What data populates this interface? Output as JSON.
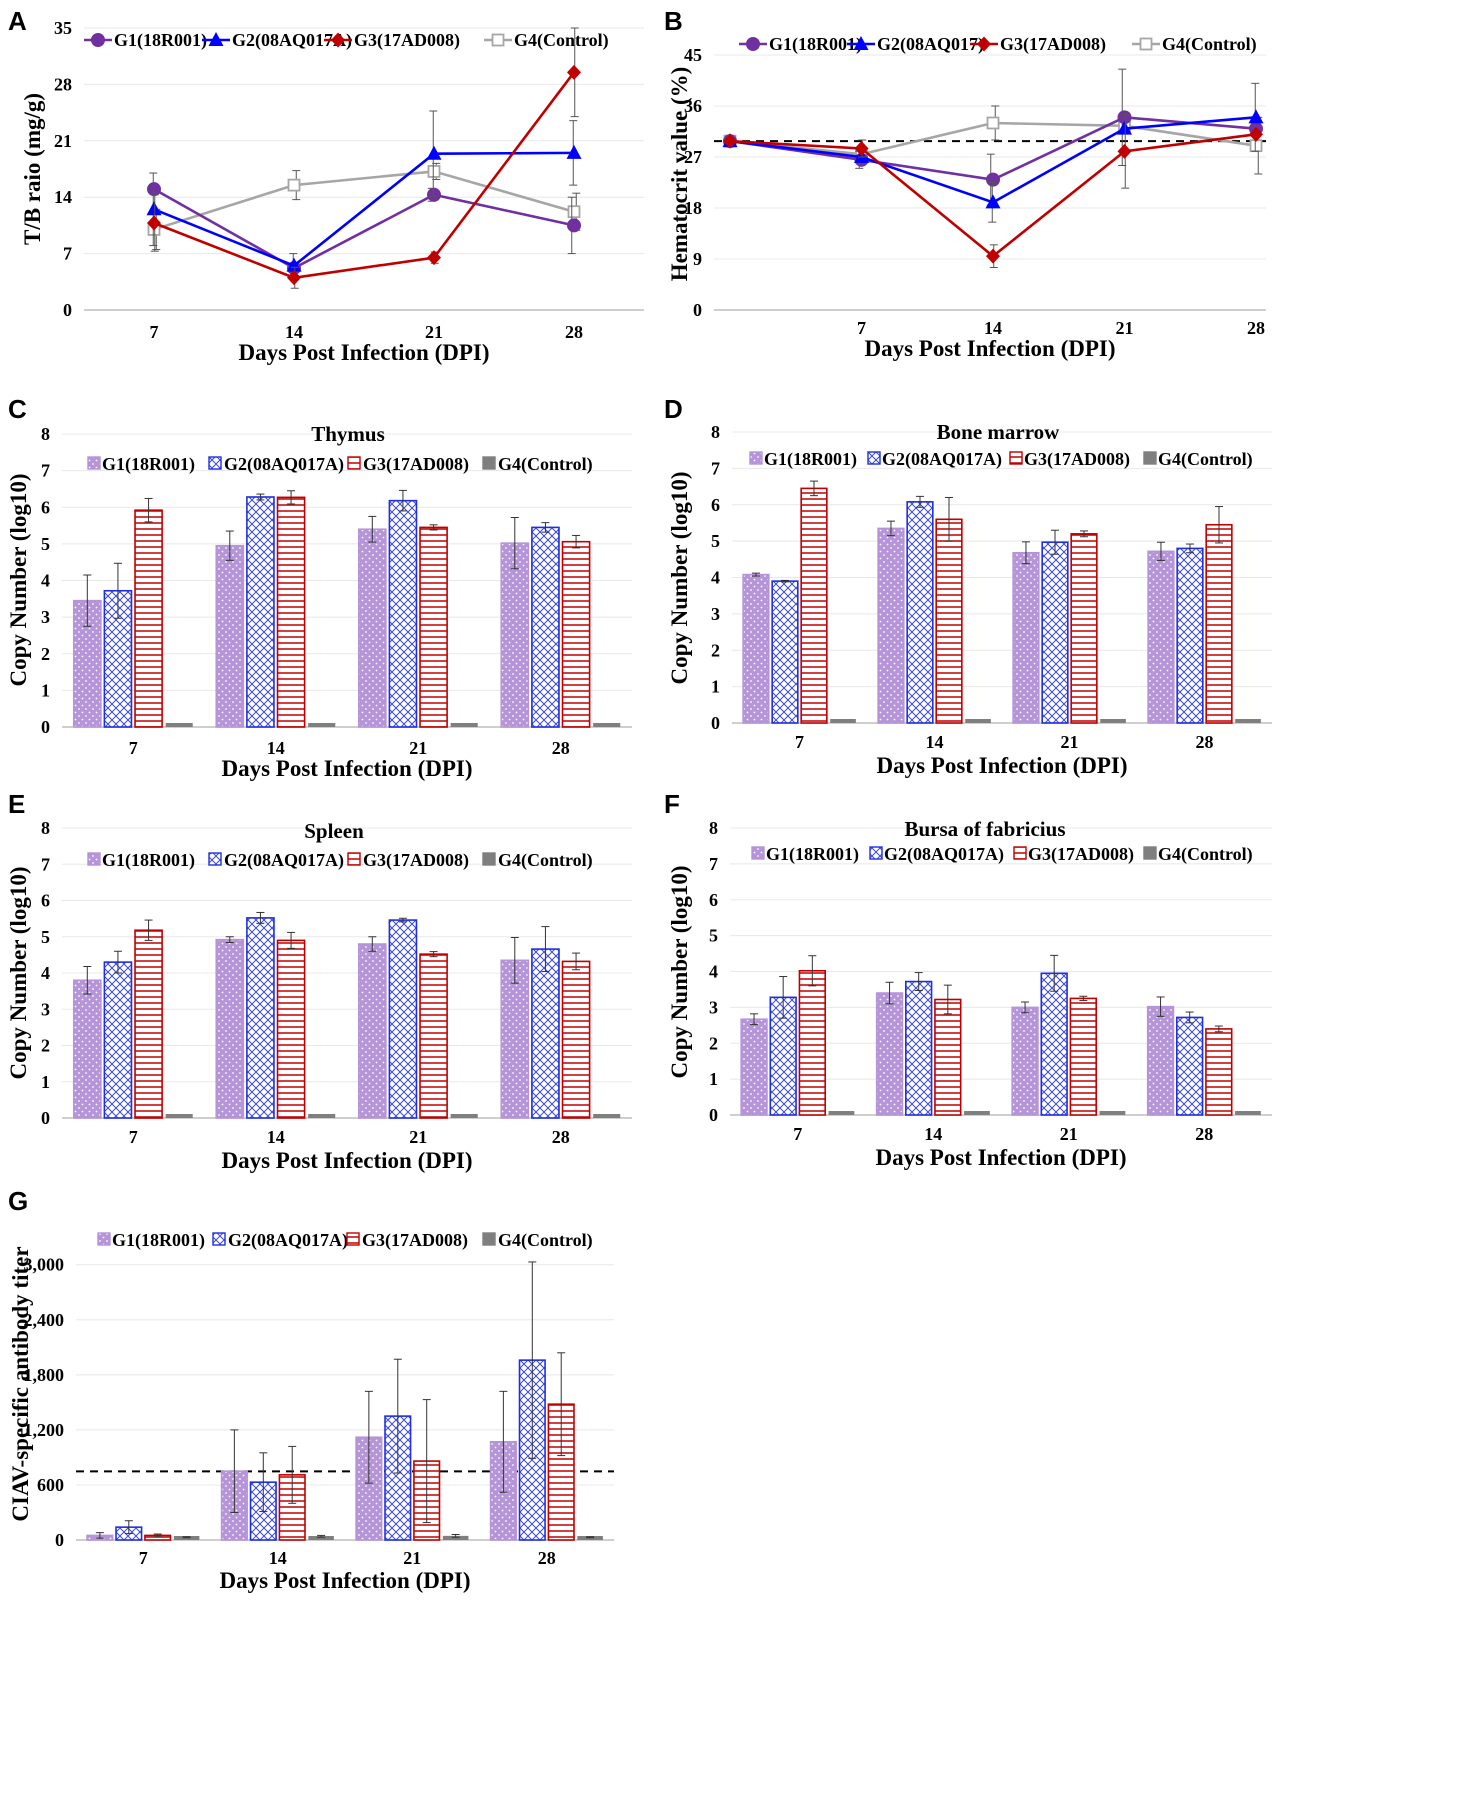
{
  "chart_data": [
    {
      "id": "A",
      "panel_label": "A",
      "type": "line",
      "title": "",
      "xlabel": "Days Post Infection (DPI)",
      "ylabel": "T/B raio (mg/g)",
      "categories": [
        "7",
        "14",
        "21",
        "28"
      ],
      "ylim": [
        0,
        35
      ],
      "yticks": [
        "0",
        "7",
        "14",
        "21",
        "28",
        "35"
      ],
      "reference_line": null,
      "series": [
        {
          "name": "G1(18R001)",
          "color": "#7030a0",
          "marker": "circle",
          "values": [
            15,
            5.2,
            14.3,
            10.5
          ],
          "errors": [
            0,
            0,
            0.8,
            3.5
          ]
        },
        {
          "name": "G2(08AQ017A)",
          "color": "#0000ff",
          "marker": "triangle",
          "values": [
            12.5,
            5.5,
            19.4,
            19.5
          ],
          "errors": [
            4.5,
            1.5,
            5.3,
            4
          ]
        },
        {
          "name": "G3(17AD008)",
          "color": "#c00000",
          "marker": "diamond",
          "values": [
            10.8,
            4,
            6.5,
            29.5
          ],
          "errors": [
            3.5,
            1.3,
            0.7,
            5.5
          ]
        },
        {
          "name": "G4(Control)",
          "color": "#a6a6a6",
          "marker": "square",
          "values": [
            10,
            15.5,
            17.2,
            12.2
          ],
          "errors": [
            2.5,
            1.8,
            1,
            2.3
          ]
        }
      ]
    },
    {
      "id": "B",
      "panel_label": "B",
      "type": "line",
      "title": "",
      "xlabel": "Days Post Infection (DPI)",
      "ylabel": "Hematocrit value (%)",
      "categories": [
        "",
        "7",
        "14",
        "21",
        "28"
      ],
      "ylim": [
        0,
        48
      ],
      "yticks": [
        "0",
        "9",
        "18",
        "27",
        "36",
        "45"
      ],
      "reference_line": 29.8,
      "series": [
        {
          "name": "G1(18R001)",
          "color": "#7030a0",
          "marker": "circle",
          "values": [
            29.8,
            26.5,
            23,
            34,
            32
          ],
          "errors": [
            0,
            1.5,
            4.5,
            8.5,
            0
          ]
        },
        {
          "name": "G2(08AQ017)",
          "color": "#0000ff",
          "marker": "triangle",
          "values": [
            29.8,
            27,
            19,
            32,
            34
          ],
          "errors": [
            0,
            0,
            3.5,
            0,
            6
          ]
        },
        {
          "name": "G3(17AD008)",
          "color": "#c00000",
          "marker": "diamond",
          "values": [
            29.8,
            28.5,
            9.5,
            28,
            31
          ],
          "errors": [
            0,
            1.5,
            2,
            6.5,
            0
          ]
        },
        {
          "name": "G4(Control)",
          "color": "#a6a6a6",
          "marker": "square",
          "values": [
            29.8,
            27.5,
            33,
            32.5,
            29
          ],
          "errors": [
            0,
            0,
            3,
            0,
            5
          ]
        }
      ]
    },
    {
      "id": "C",
      "panel_label": "C",
      "type": "bar",
      "title": "Thymus",
      "xlabel": "Days Post Infection (DPI)",
      "ylabel": "Copy Number (log10)",
      "categories": [
        "7",
        "14",
        "21",
        "28"
      ],
      "ylim": [
        0,
        8
      ],
      "yticks": [
        "0",
        "1",
        "2",
        "3",
        "4",
        "5",
        "6",
        "7",
        "8"
      ],
      "reference_line": null,
      "series": [
        {
          "name": "G1(18R001)",
          "values": [
            3.45,
            4.95,
            5.4,
            5.02
          ],
          "errors": [
            0.7,
            0.4,
            0.35,
            0.7
          ]
        },
        {
          "name": "G2(08AQ017A)",
          "values": [
            3.72,
            6.28,
            6.18,
            5.45
          ],
          "errors": [
            0.75,
            0.08,
            0.28,
            0.13
          ]
        },
        {
          "name": "G3(17AD008)",
          "values": [
            5.92,
            6.27,
            5.45,
            5.06
          ],
          "errors": [
            0.32,
            0.18,
            0.07,
            0.17
          ]
        },
        {
          "name": "G4(Control)",
          "values": [
            0.1,
            0.1,
            0.1,
            0.1
          ],
          "errors": [
            0,
            0,
            0,
            0
          ]
        }
      ]
    },
    {
      "id": "D",
      "panel_label": "D",
      "type": "bar",
      "title": "Bone marrow",
      "xlabel": "Days Post Infection (DPI)",
      "ylabel": "Copy Number (log10)",
      "categories": [
        "7",
        "14",
        "21",
        "28"
      ],
      "ylim": [
        0,
        8
      ],
      "yticks": [
        "0",
        "1",
        "2",
        "3",
        "4",
        "5",
        "6",
        "7",
        "8"
      ],
      "reference_line": null,
      "series": [
        {
          "name": "G1(18R001)",
          "values": [
            4.08,
            5.35,
            4.68,
            4.72
          ],
          "errors": [
            0.04,
            0.2,
            0.3,
            0.25
          ]
        },
        {
          "name": "G2(08AQ017A)",
          "values": [
            3.9,
            6.08,
            4.97,
            4.8
          ],
          "errors": [
            0.02,
            0.15,
            0.33,
            0.12
          ]
        },
        {
          "name": "G3(17AD008)",
          "values": [
            6.45,
            5.6,
            5.2,
            5.45
          ],
          "errors": [
            0.2,
            0.6,
            0.08,
            0.5
          ]
        },
        {
          "name": "G4(Control)",
          "values": [
            0.1,
            0.1,
            0.1,
            0.1
          ],
          "errors": [
            0,
            0,
            0,
            0
          ]
        }
      ]
    },
    {
      "id": "E",
      "panel_label": "E",
      "type": "bar",
      "title": "Spleen",
      "xlabel": "Days Post Infection (DPI)",
      "ylabel": "Copy Number (log10)",
      "categories": [
        "7",
        "14",
        "21",
        "28"
      ],
      "ylim": [
        0,
        8
      ],
      "yticks": [
        "0",
        "1",
        "2",
        "3",
        "4",
        "5",
        "6",
        "7",
        "8"
      ],
      "reference_line": null,
      "series": [
        {
          "name": "G1(18R001)",
          "values": [
            3.8,
            4.92,
            4.8,
            4.35
          ],
          "errors": [
            0.38,
            0.08,
            0.2,
            0.63
          ]
        },
        {
          "name": "G2(08AQ017A)",
          "values": [
            4.3,
            5.52,
            5.46,
            4.66
          ],
          "errors": [
            0.3,
            0.15,
            0.05,
            0.62
          ]
        },
        {
          "name": "G3(17AD008)",
          "values": [
            5.18,
            4.9,
            4.52,
            4.32
          ],
          "errors": [
            0.28,
            0.22,
            0.07,
            0.23
          ]
        },
        {
          "name": "G4(Control)",
          "values": [
            0.1,
            0.1,
            0.1,
            0.1
          ],
          "errors": [
            0,
            0,
            0,
            0
          ]
        }
      ]
    },
    {
      "id": "F",
      "panel_label": "F",
      "type": "bar",
      "title": "Bursa of fabricius",
      "xlabel": "Days Post Infection (DPI)",
      "ylabel": "Copy Number (log10)",
      "categories": [
        "7",
        "14",
        "21",
        "28"
      ],
      "ylim": [
        0,
        8
      ],
      "yticks": [
        "0",
        "1",
        "2",
        "3",
        "4",
        "5",
        "6",
        "7",
        "8"
      ],
      "reference_line": null,
      "series": [
        {
          "name": "G1(18R001)",
          "values": [
            2.67,
            3.4,
            3.0,
            3.02
          ],
          "errors": [
            0.15,
            0.3,
            0.15,
            0.27
          ]
        },
        {
          "name": "G2(08AQ017A)",
          "values": [
            3.28,
            3.72,
            3.95,
            2.72
          ],
          "errors": [
            0.58,
            0.25,
            0.5,
            0.15
          ]
        },
        {
          "name": "G3(17AD008)",
          "values": [
            4.02,
            3.22,
            3.25,
            2.4
          ],
          "errors": [
            0.42,
            0.4,
            0.06,
            0.08
          ]
        },
        {
          "name": "G4(Control)",
          "values": [
            0.1,
            0.1,
            0.1,
            0.1
          ],
          "errors": [
            0,
            0,
            0,
            0
          ]
        }
      ]
    },
    {
      "id": "G",
      "panel_label": "G",
      "type": "bar",
      "title": "",
      "xlabel": "Days Post Infection (DPI)",
      "ylabel": "CIAV-specific antibody titer",
      "categories": [
        "7",
        "14",
        "21",
        "28"
      ],
      "ylim": [
        0,
        3400
      ],
      "yticks": [
        "0",
        "600",
        "1,200",
        "1,800",
        "2,400",
        "3,000"
      ],
      "reference_line": 748,
      "series": [
        {
          "name": "G1(18R001)",
          "values": [
            50,
            750,
            1120,
            1070
          ],
          "errors": [
            30,
            450,
            500,
            550
          ]
        },
        {
          "name": "G2(08AQ017A)",
          "values": [
            140,
            630,
            1350,
            1960
          ],
          "errors": [
            70,
            320,
            620,
            1070
          ]
        },
        {
          "name": "G3(17AD008)",
          "values": [
            50,
            710,
            860,
            1480
          ],
          "errors": [
            15,
            310,
            670,
            560
          ]
        },
        {
          "name": "G4(Control)",
          "values": [
            30,
            40,
            45,
            30
          ],
          "errors": [
            5,
            10,
            15,
            5
          ]
        }
      ]
    }
  ]
}
